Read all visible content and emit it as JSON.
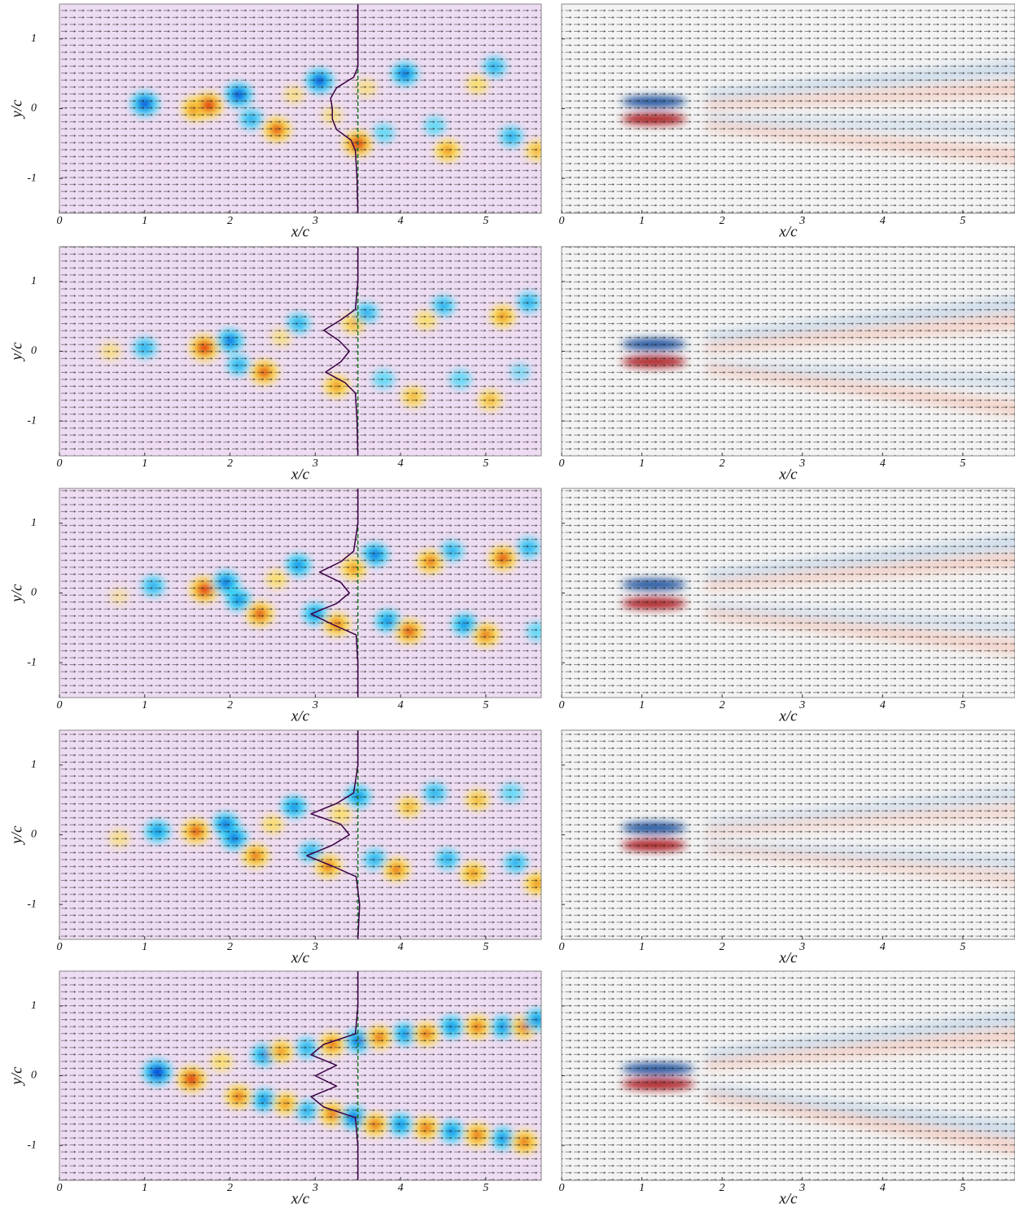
{
  "chart_data": [
    {
      "type": "contour",
      "colormap": "jet",
      "background": "#eedcf2",
      "xlabel": "x/c",
      "ylabel": "y/c",
      "xlim": [
        0,
        5.65
      ],
      "ylim": [
        -1.5,
        1.5
      ],
      "xticks": [
        0,
        1,
        2,
        3,
        4,
        5
      ],
      "yticks": [
        -1,
        0,
        1
      ],
      "show_ytick_labels": true,
      "probe_x": 3.5,
      "vortices": {
        "x": [
          1.0,
          1.6,
          1.75,
          2.1,
          2.25,
          2.55,
          2.75,
          3.05,
          3.2,
          3.5,
          3.6,
          3.8,
          4.05,
          4.4,
          4.55,
          4.9,
          5.1,
          5.3,
          5.6
        ],
        "y": [
          0.07,
          0.0,
          0.05,
          0.2,
          -0.15,
          -0.3,
          0.2,
          0.4,
          -0.1,
          -0.5,
          0.3,
          -0.35,
          0.5,
          -0.25,
          -0.6,
          0.35,
          0.6,
          -0.4,
          -0.6
        ],
        "values": [
          -0.9,
          0.9,
          1.0,
          -0.9,
          -0.6,
          0.9,
          0.4,
          -0.9,
          0.4,
          1.0,
          0.4,
          -0.5,
          -0.8,
          -0.5,
          0.7,
          0.5,
          -0.6,
          -0.6,
          0.6
        ]
      },
      "profile": {
        "y": [
          -1.5,
          -1.0,
          -0.6,
          -0.45,
          -0.3,
          -0.15,
          0,
          0.15,
          0.3,
          0.45,
          0.6,
          1.0,
          1.5
        ],
        "x": [
          3.5,
          3.49,
          3.47,
          3.42,
          3.25,
          3.2,
          3.2,
          3.18,
          3.25,
          3.45,
          3.5,
          3.5,
          3.5
        ]
      }
    },
    {
      "type": "contour",
      "colormap": "rdbu",
      "background": "#f3f3f3",
      "xlabel": "x/c",
      "xlim": [
        0,
        5.65
      ],
      "ylim": [
        -1.5,
        1.5
      ],
      "xticks": [
        0,
        1,
        2,
        3,
        4,
        5
      ],
      "yticks": [
        -1,
        0,
        1
      ],
      "show_ytick_labels": false,
      "vortices": {
        "x": [
          1.15,
          1.15
        ],
        "y": [
          0.1,
          -0.15
        ],
        "values": [
          -0.9,
          0.9
        ],
        "widths": [
          0.8,
          0.8
        ]
      },
      "bands": {
        "y0": [
          0.2,
          0.05,
          -0.15,
          -0.25
        ],
        "y1": [
          0.6,
          0.3,
          -0.3,
          -0.7
        ],
        "values": [
          -0.2,
          0.2,
          -0.15,
          0.2
        ]
      }
    },
    {
      "type": "contour",
      "colormap": "jet",
      "background": "#eedcf2",
      "xlabel": "x/c",
      "ylabel": "y/c",
      "xlim": [
        0,
        5.65
      ],
      "ylim": [
        -1.5,
        1.5
      ],
      "xticks": [
        0,
        1,
        2,
        3,
        4,
        5
      ],
      "yticks": [
        -1,
        0,
        1
      ],
      "show_ytick_labels": true,
      "probe_x": 3.5,
      "vortices": {
        "x": [
          0.6,
          1.0,
          1.7,
          2.0,
          2.1,
          2.4,
          2.6,
          2.8,
          3.25,
          3.45,
          3.6,
          3.8,
          4.15,
          4.3,
          4.5,
          4.7,
          5.05,
          5.2,
          5.4,
          5.5
        ],
        "y": [
          0,
          0.05,
          0.05,
          0.15,
          -0.2,
          -0.3,
          0.2,
          0.4,
          -0.5,
          0.4,
          0.55,
          -0.4,
          -0.65,
          0.45,
          0.65,
          -0.4,
          -0.7,
          0.5,
          -0.3,
          0.7
        ],
        "values": [
          0.4,
          -0.6,
          1.0,
          -0.8,
          -0.6,
          0.9,
          0.4,
          -0.6,
          0.7,
          0.6,
          -0.6,
          -0.5,
          0.6,
          0.5,
          -0.6,
          -0.5,
          0.6,
          0.7,
          -0.4,
          -0.6
        ]
      },
      "profile": {
        "y": [
          -1.5,
          -1.0,
          -0.6,
          -0.45,
          -0.3,
          -0.15,
          0,
          0.15,
          0.3,
          0.45,
          0.6,
          1.0,
          1.5
        ],
        "x": [
          3.5,
          3.49,
          3.47,
          3.35,
          3.12,
          3.3,
          3.4,
          3.28,
          3.1,
          3.3,
          3.47,
          3.5,
          3.5
        ]
      }
    },
    {
      "type": "contour",
      "colormap": "rdbu",
      "background": "#f3f3f3",
      "xlabel": "x/c",
      "xlim": [
        0,
        5.65
      ],
      "ylim": [
        -1.5,
        1.5
      ],
      "xticks": [
        0,
        1,
        2,
        3,
        4,
        5
      ],
      "yticks": [
        -1,
        0,
        1
      ],
      "show_ytick_labels": false,
      "vortices": {
        "x": [
          1.15,
          1.15
        ],
        "y": [
          0.1,
          -0.15
        ],
        "values": [
          -0.9,
          0.9
        ],
        "widths": [
          0.8,
          0.8
        ]
      },
      "bands": {
        "y0": [
          0.2,
          0.05,
          -0.2,
          -0.25
        ],
        "y1": [
          0.7,
          0.45,
          -0.45,
          -0.85
        ],
        "values": [
          -0.2,
          0.2,
          -0.15,
          0.2
        ]
      }
    },
    {
      "type": "contour",
      "colormap": "jet",
      "background": "#eedcf2",
      "xlabel": "x/c",
      "ylabel": "y/c",
      "xlim": [
        0,
        5.65
      ],
      "ylim": [
        -1.5,
        1.5
      ],
      "xticks": [
        0,
        1,
        2,
        3,
        4,
        5
      ],
      "yticks": [
        -1,
        0,
        1
      ],
      "show_ytick_labels": true,
      "probe_x": 3.5,
      "vortices": {
        "x": [
          0.7,
          1.1,
          1.7,
          1.95,
          2.1,
          2.35,
          2.55,
          2.8,
          3.0,
          3.25,
          3.45,
          3.7,
          3.85,
          4.1,
          4.35,
          4.6,
          4.75,
          5.0,
          5.2,
          5.5,
          5.6
        ],
        "y": [
          -0.05,
          0.1,
          0.05,
          0.15,
          -0.1,
          -0.3,
          0.2,
          0.4,
          -0.3,
          -0.45,
          0.35,
          0.55,
          -0.4,
          -0.55,
          0.45,
          0.6,
          -0.45,
          -0.6,
          0.5,
          0.65,
          -0.55
        ],
        "values": [
          0.3,
          -0.6,
          1.0,
          -0.8,
          -0.7,
          0.9,
          0.5,
          -0.7,
          -0.7,
          0.8,
          0.7,
          -0.8,
          -0.7,
          0.9,
          0.8,
          -0.6,
          -0.7,
          0.8,
          0.9,
          -0.6,
          -0.5
        ]
      },
      "profile": {
        "y": [
          -1.5,
          -1.0,
          -0.6,
          -0.45,
          -0.3,
          -0.15,
          0,
          0.15,
          0.3,
          0.45,
          0.6,
          1.0,
          1.5
        ],
        "x": [
          3.5,
          3.5,
          3.48,
          3.2,
          2.95,
          3.25,
          3.4,
          3.3,
          3.05,
          3.3,
          3.45,
          3.5,
          3.5
        ]
      }
    },
    {
      "type": "contour",
      "colormap": "rdbu",
      "background": "#f3f3f3",
      "xlabel": "x/c",
      "xlim": [
        0,
        5.65
      ],
      "ylim": [
        -1.5,
        1.5
      ],
      "xticks": [
        0,
        1,
        2,
        3,
        4,
        5
      ],
      "yticks": [
        -1,
        0,
        1
      ],
      "show_ytick_labels": false,
      "vortices": {
        "x": [
          1.15,
          1.15
        ],
        "y": [
          0.12,
          -0.15
        ],
        "values": [
          -0.9,
          0.9
        ],
        "widths": [
          0.8,
          0.8
        ]
      },
      "bands": {
        "y0": [
          0.25,
          0.1,
          -0.2,
          -0.3
        ],
        "y1": [
          0.75,
          0.5,
          -0.5,
          -0.8
        ],
        "values": [
          -0.2,
          0.2,
          -0.15,
          0.2
        ]
      }
    },
    {
      "type": "contour",
      "colormap": "jet",
      "background": "#eedcf2",
      "xlabel": "x/c",
      "ylabel": "y/c",
      "xlim": [
        0,
        5.65
      ],
      "ylim": [
        -1.5,
        1.5
      ],
      "xticks": [
        0,
        1,
        2,
        3,
        4,
        5
      ],
      "yticks": [
        -1,
        0,
        1
      ],
      "show_ytick_labels": true,
      "probe_x": 3.5,
      "vortices": {
        "x": [
          0.7,
          1.15,
          1.6,
          1.95,
          2.05,
          2.3,
          2.5,
          2.75,
          2.95,
          3.15,
          3.3,
          3.5,
          3.7,
          3.95,
          4.1,
          4.4,
          4.55,
          4.85,
          4.9,
          5.3,
          5.35,
          5.6
        ],
        "y": [
          -0.05,
          0.05,
          0.05,
          0.15,
          -0.05,
          -0.3,
          0.15,
          0.4,
          -0.25,
          -0.45,
          0.3,
          0.55,
          -0.35,
          -0.5,
          0.4,
          0.6,
          -0.35,
          -0.55,
          0.5,
          0.6,
          -0.4,
          -0.7
        ],
        "values": [
          0.4,
          -0.7,
          0.9,
          -0.8,
          -0.8,
          0.8,
          0.5,
          -0.7,
          -0.6,
          0.8,
          0.5,
          -0.7,
          -0.6,
          0.8,
          0.6,
          -0.6,
          -0.6,
          0.7,
          0.6,
          -0.5,
          -0.6,
          0.7
        ]
      },
      "profile": {
        "y": [
          -1.5,
          -1.0,
          -0.6,
          -0.45,
          -0.3,
          -0.15,
          0,
          0.15,
          0.3,
          0.45,
          0.6,
          1.0,
          1.5
        ],
        "x": [
          3.5,
          3.52,
          3.48,
          3.2,
          2.9,
          3.2,
          3.4,
          3.3,
          2.95,
          3.25,
          3.45,
          3.5,
          3.5
        ]
      }
    },
    {
      "type": "contour",
      "colormap": "rdbu",
      "background": "#f3f3f3",
      "xlabel": "x/c",
      "xlim": [
        0,
        5.65
      ],
      "ylim": [
        -1.5,
        1.5
      ],
      "xticks": [
        0,
        1,
        2,
        3,
        4,
        5
      ],
      "yticks": [
        -1,
        0,
        1
      ],
      "show_ytick_labels": false,
      "vortices": {
        "x": [
          1.15,
          1.15
        ],
        "y": [
          0.1,
          -0.15
        ],
        "values": [
          -0.9,
          0.9
        ],
        "widths": [
          0.8,
          0.8
        ]
      },
      "bands": {
        "y0": [
          0.15,
          0.05,
          -0.15,
          -0.2
        ],
        "y1": [
          0.6,
          0.35,
          -0.4,
          -0.65
        ],
        "values": [
          -0.15,
          0.15,
          -0.15,
          0.15
        ]
      }
    },
    {
      "type": "contour",
      "colormap": "jet",
      "background": "#eedcf2",
      "xlabel": "x/c",
      "ylabel": "y/c",
      "xlim": [
        0,
        5.65
      ],
      "ylim": [
        -1.5,
        1.5
      ],
      "xticks": [
        0,
        1,
        2,
        3,
        4,
        5
      ],
      "yticks": [
        -1,
        0,
        1
      ],
      "show_ytick_labels": true,
      "probe_x": 3.5,
      "vortices": {
        "x": [
          1.15,
          1.55,
          1.9,
          2.1,
          2.4,
          2.4,
          2.6,
          2.65,
          2.9,
          2.9,
          3.2,
          3.2,
          3.5,
          3.45,
          3.75,
          3.7,
          4.05,
          4.0,
          4.3,
          4.3,
          4.6,
          4.6,
          4.9,
          4.9,
          5.2,
          5.2,
          5.45,
          5.45,
          5.6
        ],
        "y": [
          0.05,
          -0.05,
          0.2,
          -0.3,
          0.3,
          -0.35,
          0.35,
          -0.4,
          0.4,
          -0.5,
          0.45,
          -0.55,
          0.5,
          -0.6,
          0.55,
          -0.7,
          0.6,
          -0.7,
          0.6,
          -0.75,
          0.7,
          -0.8,
          0.7,
          -0.85,
          0.7,
          -0.9,
          0.7,
          -0.95,
          0.8
        ],
        "values": [
          -1.0,
          1.0,
          0.5,
          0.8,
          -0.7,
          -0.7,
          0.7,
          0.7,
          -0.6,
          -0.6,
          0.8,
          0.8,
          -0.8,
          -0.8,
          0.8,
          0.8,
          -0.7,
          -0.7,
          0.8,
          0.8,
          -0.7,
          -0.7,
          0.8,
          0.8,
          -0.7,
          -0.7,
          0.8,
          0.8,
          -0.7
        ]
      },
      "profile": {
        "y": [
          -1.5,
          -1.0,
          -0.6,
          -0.45,
          -0.3,
          -0.15,
          0,
          0.15,
          0.3,
          0.45,
          0.6,
          1.0,
          1.5
        ],
        "x": [
          3.5,
          3.5,
          3.47,
          3.1,
          2.95,
          3.25,
          3.0,
          3.25,
          2.95,
          3.1,
          3.47,
          3.5,
          3.5
        ]
      }
    },
    {
      "type": "contour",
      "colormap": "rdbu",
      "background": "#f3f3f3",
      "xlabel": "x/c",
      "xlim": [
        0,
        5.65
      ],
      "ylim": [
        -1.5,
        1.5
      ],
      "xticks": [
        0,
        1,
        2,
        3,
        4,
        5
      ],
      "yticks": [
        -1,
        0,
        1
      ],
      "show_ytick_labels": false,
      "vortices": {
        "x": [
          1.2,
          1.2
        ],
        "y": [
          0.1,
          -0.12
        ],
        "values": [
          -0.9,
          0.9
        ],
        "widths": [
          0.9,
          0.9
        ]
      },
      "bands": {
        "y0": [
          0.3,
          0.15,
          -0.2,
          -0.3
        ],
        "y1": [
          0.85,
          0.6,
          -0.8,
          -1.05
        ],
        "values": [
          -0.2,
          0.2,
          -0.2,
          0.2
        ]
      }
    }
  ]
}
